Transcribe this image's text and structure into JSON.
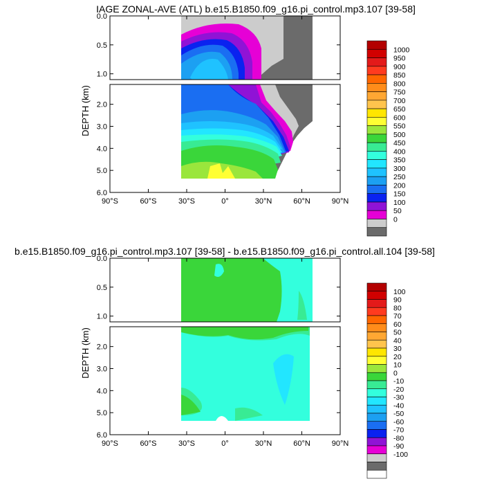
{
  "chart_data": [
    {
      "type": "contour",
      "title": "IAGE ZONAL-AVE (ATL) b.e15.B1850.f09_g16.pi_control.mp3.107 [39-58]",
      "ylabel": "DEPTH (km)",
      "xticks": [
        "90°S",
        "60°S",
        "30°S",
        "0°",
        "30°N",
        "60°N",
        "90°N"
      ],
      "xtick_values": [
        -90,
        -60,
        -30,
        0,
        30,
        60,
        90
      ],
      "xlim": [
        -90,
        90
      ],
      "upper_yticks": [
        "0.0",
        "0.5",
        "1.0"
      ],
      "upper_ytick_values": [
        0,
        0.5,
        1.0
      ],
      "upper_ylim": [
        0,
        1.1
      ],
      "lower_yticks": [
        "2.0",
        "3.0",
        "4.0",
        "5.0",
        "6.0"
      ],
      "lower_ytick_values": [
        2,
        3,
        4,
        5,
        6
      ],
      "lower_ylim": [
        1.1,
        6.0
      ],
      "colorbar_labels": [
        "1000",
        "950",
        "900",
        "850",
        "800",
        "750",
        "700",
        "650",
        "600",
        "550",
        "500",
        "450",
        "400",
        "350",
        "300",
        "250",
        "200",
        "150",
        "100",
        "50",
        "0"
      ],
      "colorbar_colors": [
        "#b30000",
        "#d10000",
        "#e31a1a",
        "#ff3b1f",
        "#ff6600",
        "#ff8c1a",
        "#ffa733",
        "#ffc44d",
        "#ffe600",
        "#ffff33",
        "#9ae63c",
        "#3ad63a",
        "#38eb94",
        "#33ffdd",
        "#22e6ff",
        "#1fc2ff",
        "#1ca0f2",
        "#1a6ef2",
        "#0a22f0",
        "#9013d6",
        "#e600d6",
        "#cccccc",
        "#6b6b6b"
      ]
    },
    {
      "type": "contour",
      "title": "b.e15.B1850.f09_g16.pi_control.mp3.107 [39-58] - b.e15.B1850.f09_g16.pi_control.all.104 [39-58]",
      "ylabel": "DEPTH (km)",
      "xticks": [
        "90°S",
        "60°S",
        "30°S",
        "0°",
        "30°N",
        "60°N",
        "90°N"
      ],
      "xtick_values": [
        -90,
        -60,
        -30,
        0,
        30,
        60,
        90
      ],
      "xlim": [
        -90,
        90
      ],
      "upper_yticks": [
        "0.0",
        "0.5",
        "1.0"
      ],
      "upper_ytick_values": [
        0,
        0.5,
        1.0
      ],
      "upper_ylim": [
        0,
        1.1
      ],
      "lower_yticks": [
        "2.0",
        "3.0",
        "4.0",
        "5.0",
        "6.0"
      ],
      "lower_ytick_values": [
        2,
        3,
        4,
        5,
        6
      ],
      "lower_ylim": [
        1.1,
        6.0
      ],
      "colorbar_labels": [
        "100",
        "90",
        "80",
        "70",
        "60",
        "50",
        "40",
        "30",
        "20",
        "10",
        "0",
        "-10",
        "-20",
        "-30",
        "-40",
        "-50",
        "-60",
        "-70",
        "-80",
        "-90",
        "-100"
      ],
      "colorbar_colors": [
        "#b30000",
        "#d10000",
        "#e31a1a",
        "#ff3b1f",
        "#ff6600",
        "#ff8c1a",
        "#ffa733",
        "#ffc44d",
        "#ffe600",
        "#ffff33",
        "#9ae63c",
        "#3ad63a",
        "#38eb94",
        "#33ffdd",
        "#22e6ff",
        "#1fc2ff",
        "#1ca0f2",
        "#1a6ef2",
        "#0a22f0",
        "#9013d6",
        "#e600d6",
        "#cccccc",
        "#6b6b6b",
        "#ffffff"
      ]
    }
  ]
}
